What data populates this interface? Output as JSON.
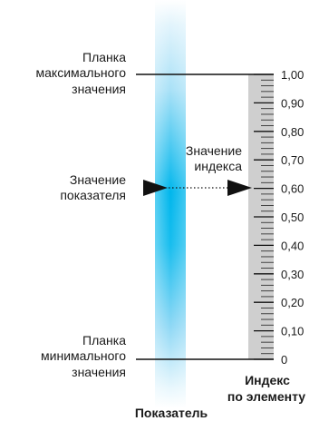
{
  "labels": {
    "max_bar_line1": "Планка",
    "max_bar_line2": "максимального",
    "max_bar_line3": "значения",
    "indicator_value_line1": "Значение",
    "indicator_value_line2": "показателя",
    "index_value_line1": "Значение",
    "index_value_line2": "индекса",
    "min_bar_line1": "Планка",
    "min_bar_line2": "минимального",
    "min_bar_line3": "значения",
    "element_index_line1": "Индекс",
    "element_index_line2": "по элементу",
    "indicator": "Показатель"
  },
  "scale": {
    "ticks": [
      "0",
      "0,10",
      "0,20",
      "0,30",
      "0,40",
      "0,50",
      "0,60",
      "0,70",
      "0,80",
      "0,90",
      "1,00"
    ],
    "min": 0,
    "max": 1,
    "index_value": 0.6
  },
  "colors": {
    "bar_light": "#e6f6fd",
    "bar_core": "#00b6ec",
    "ruler_fill": "#cfcfcf",
    "line": "#111111"
  }
}
